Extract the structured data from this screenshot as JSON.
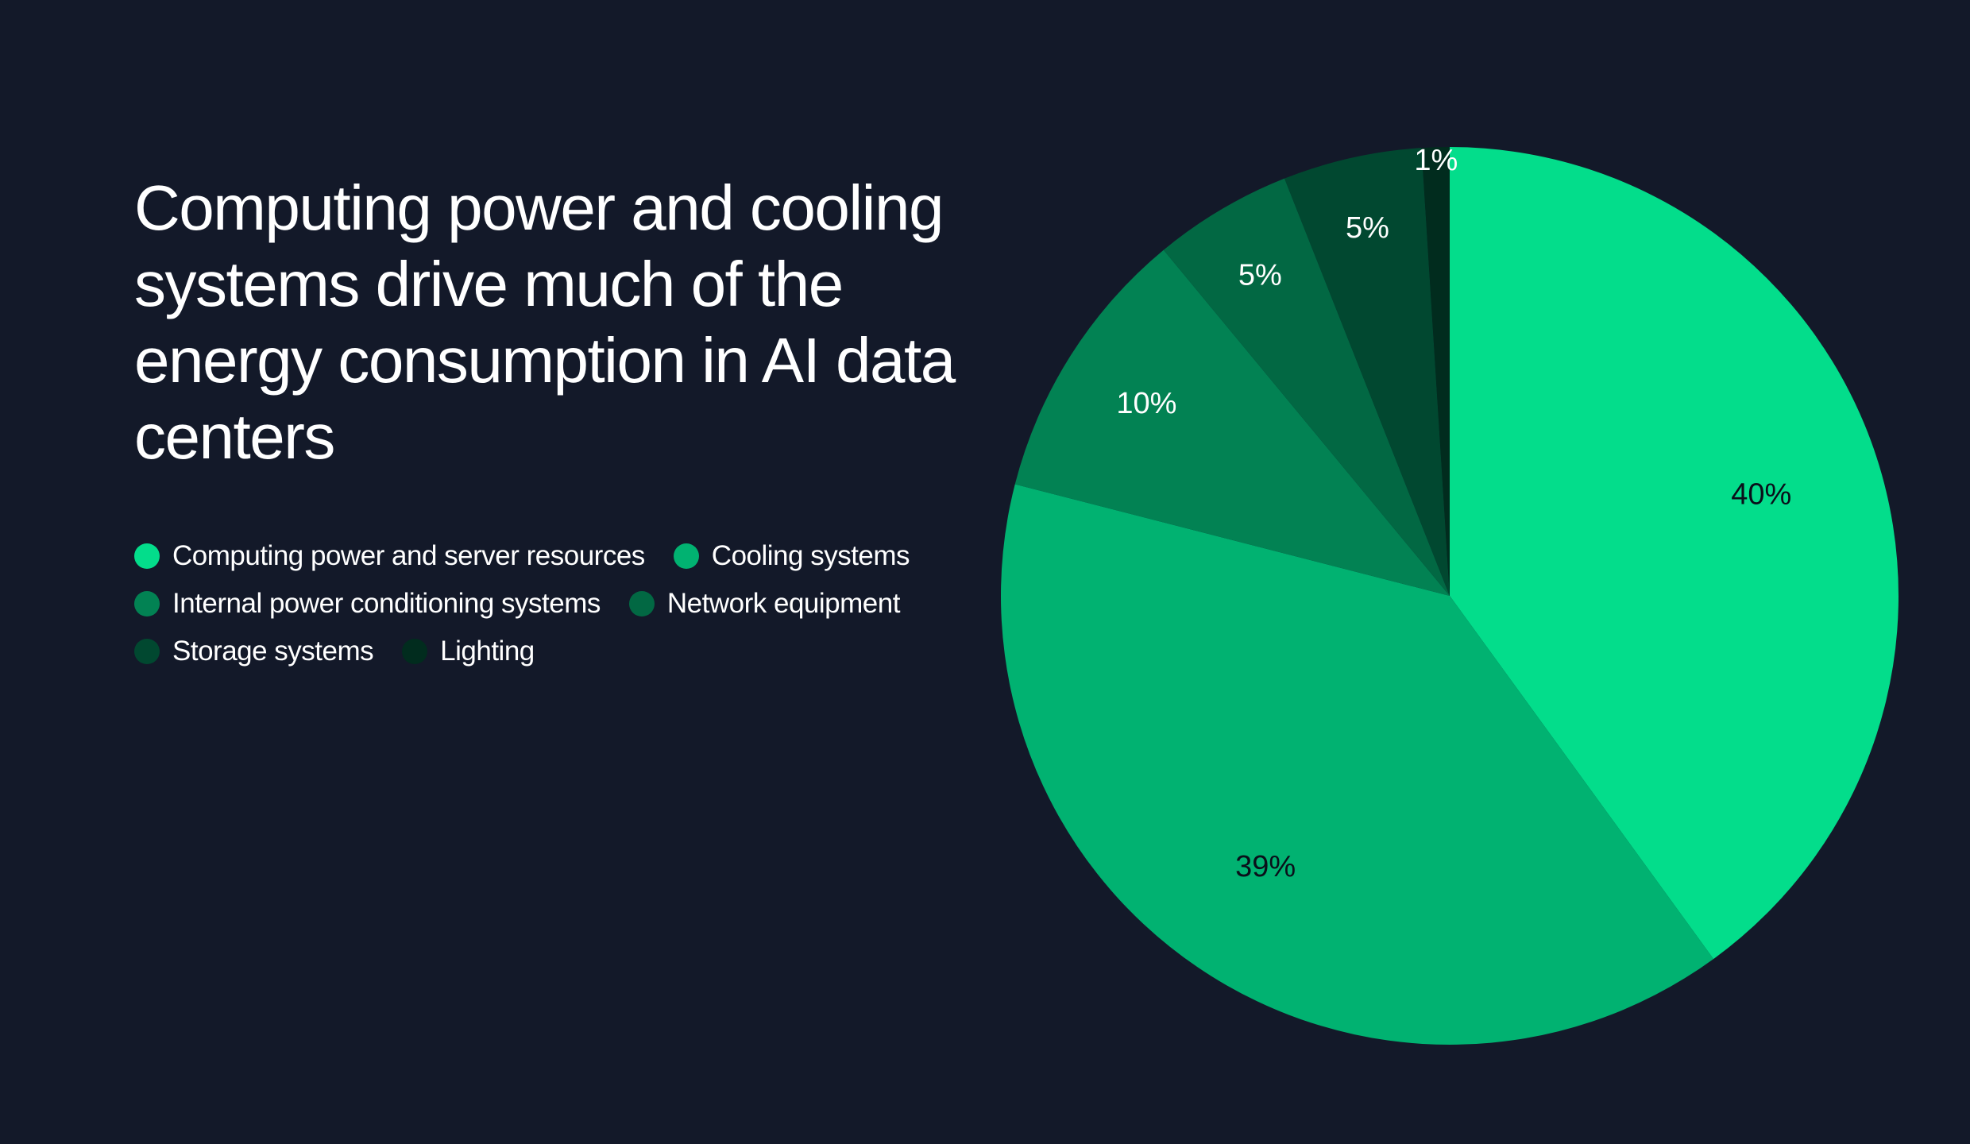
{
  "title": "Computing power and cooling systems drive much of the energy consumption in AI data centers",
  "legend": [
    {
      "label": "Computing power and server resources",
      "color": "#03DD8B"
    },
    {
      "label": "Cooling systems",
      "color": "#01B271"
    },
    {
      "label": "Internal power conditioning systems",
      "color": "#028253"
    },
    {
      "label": "Network equipment",
      "color": "#026843"
    },
    {
      "label": "Storage systems",
      "color": "#014830"
    },
    {
      "label": "Lighting",
      "color": "#012C1E"
    }
  ],
  "chart_data": {
    "type": "pie",
    "title": "Computing power and cooling systems drive much of the energy consumption in AI data centers",
    "categories": [
      "Computing power and server resources",
      "Cooling systems",
      "Internal power conditioning systems",
      "Network equipment",
      "Storage systems",
      "Lighting"
    ],
    "values": [
      40,
      39,
      10,
      5,
      5,
      1
    ],
    "labels": [
      "40%",
      "39%",
      "10%",
      "5%",
      "5%",
      "1%"
    ],
    "colors": [
      "#03DD8B",
      "#01B271",
      "#028253",
      "#026843",
      "#014830",
      "#012C1E"
    ],
    "label_colors": [
      "#0a0f1a",
      "#0a0f1a",
      "#ffffff",
      "#ffffff",
      "#ffffff",
      "#ffffff"
    ],
    "start": "12 o'clock",
    "direction": "clockwise",
    "legend_position": "left"
  }
}
